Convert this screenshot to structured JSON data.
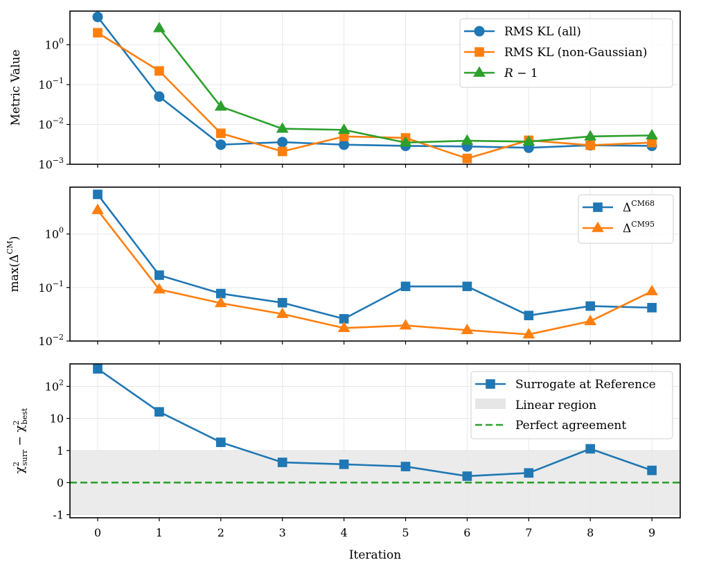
{
  "chart_data": [
    {
      "type": "line",
      "panel": "top",
      "scale": "log",
      "ylabel": "Metric Value",
      "ylim": [
        0.001,
        7
      ],
      "yticks": [
        {
          "value": 0.001,
          "base": "10",
          "exp": "−3"
        },
        {
          "value": 0.01,
          "base": "10",
          "exp": "−2"
        },
        {
          "value": 0.1,
          "base": "10",
          "exp": "−1"
        },
        {
          "value": 1,
          "base": "10",
          "exp": "0"
        }
      ],
      "legend_position": "top-right",
      "series": [
        {
          "name": "RMS KL (all)",
          "color": "#1f77b4",
          "marker": "circle",
          "x": [
            0,
            1,
            2,
            3,
            4,
            5,
            6,
            7,
            8,
            9
          ],
          "values": [
            5.0,
            0.05,
            0.0031,
            0.0036,
            0.0031,
            0.0029,
            0.0028,
            0.0026,
            0.003,
            0.0029
          ]
        },
        {
          "name": "RMS KL (non-Gaussian)",
          "color": "#ff7f0e",
          "marker": "square",
          "x": [
            0,
            1,
            2,
            3,
            4,
            5,
            6,
            7,
            8,
            9
          ],
          "values": [
            2.0,
            0.22,
            0.006,
            0.0021,
            0.005,
            0.0046,
            0.0014,
            0.004,
            0.003,
            0.0035
          ]
        },
        {
          "name": "R − 1",
          "color": "#2ca02c",
          "marker": "triangle",
          "x": [
            1,
            2,
            3,
            4,
            5,
            6,
            7,
            8,
            9
          ],
          "values": [
            2.6,
            0.028,
            0.0078,
            0.0073,
            0.0035,
            0.0039,
            0.0037,
            0.005,
            0.0053
          ]
        }
      ]
    },
    {
      "type": "line",
      "panel": "middle",
      "scale": "log",
      "ylabel": "max(ΔCM)",
      "ylabel_main": "max(Δ",
      "ylabel_sup": "CM",
      "ylabel_close": ")",
      "ylim": [
        0.01,
        7.5
      ],
      "yticks": [
        {
          "value": 0.01,
          "base": "10",
          "exp": "−2"
        },
        {
          "value": 0.1,
          "base": "10",
          "exp": "−1"
        },
        {
          "value": 1,
          "base": "10",
          "exp": "0"
        }
      ],
      "legend_position": "top-right",
      "series": [
        {
          "name": "ΔCM68",
          "label_main": "Δ",
          "label_sup": "CM68",
          "color": "#1f77b4",
          "marker": "square",
          "x": [
            0,
            1,
            2,
            3,
            4,
            5,
            6,
            7,
            8,
            9
          ],
          "values": [
            5.5,
            0.17,
            0.077,
            0.052,
            0.026,
            0.105,
            0.105,
            0.03,
            0.045,
            0.042
          ]
        },
        {
          "name": "ΔCM95",
          "label_main": "Δ",
          "label_sup": "CM95",
          "color": "#ff7f0e",
          "marker": "triangle",
          "x": [
            0,
            1,
            2,
            3,
            4,
            5,
            6,
            7,
            8,
            9
          ],
          "values": [
            2.8,
            0.092,
            0.051,
            0.032,
            0.0175,
            0.0195,
            0.016,
            0.0133,
            0.0235,
            0.085
          ]
        }
      ]
    },
    {
      "type": "line",
      "panel": "bottom",
      "scale": "symlog",
      "ylabel": "χ2surr − χ2best",
      "ylabel_parts": {
        "chi": "χ",
        "sup": "2",
        "sub1": "surr",
        "minus": " − ",
        "sub2": "best"
      },
      "ylim": [
        -1.25,
        500
      ],
      "yticks": [
        {
          "value": -1,
          "label": "-1"
        },
        {
          "value": 0,
          "label": "0"
        },
        {
          "value": 1,
          "label": "1"
        },
        {
          "value": 10,
          "label": "10"
        },
        {
          "value": 100,
          "base": "10",
          "exp": "2"
        }
      ],
      "xlabel": "Iteration",
      "xticks": [
        "0",
        "1",
        "2",
        "3",
        "4",
        "5",
        "6",
        "7",
        "8",
        "9"
      ],
      "linear_region": [
        -1,
        1
      ],
      "legend_position": "top-right",
      "series": [
        {
          "name": "Surrogate at Reference",
          "color": "#1f77b4",
          "marker": "square",
          "x": [
            0,
            1,
            2,
            3,
            4,
            5,
            6,
            7,
            8,
            9
          ],
          "values": [
            350,
            16,
            1.8,
            0.63,
            0.57,
            0.5,
            0.2,
            0.3,
            1.13,
            0.38
          ]
        },
        {
          "name": "Linear region",
          "color": "#e6e6e6",
          "marker": "patch"
        },
        {
          "name": "Perfect agreement",
          "color": "#2ca02c",
          "marker": "dashed",
          "value": 0
        }
      ]
    }
  ]
}
